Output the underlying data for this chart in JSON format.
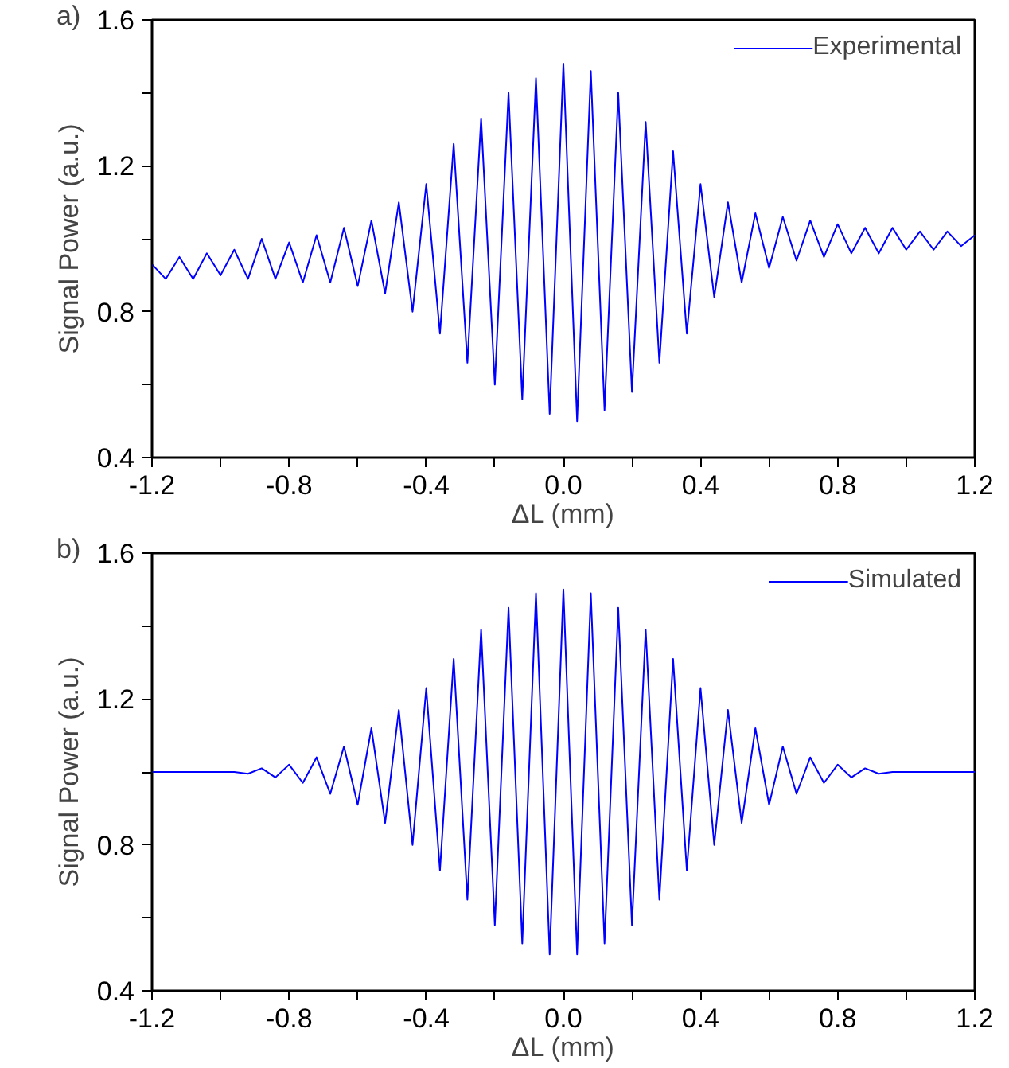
{
  "chart_data": [
    {
      "type": "line",
      "annotations": [
        "a)"
      ],
      "xlabel": "ΔL (mm)",
      "ylabel": "Signal Power (a.u.)",
      "x": [
        -1.2,
        -1.16,
        -1.12,
        -1.08,
        -1.04,
        -1.0,
        -0.96,
        -0.92,
        -0.88,
        -0.84,
        -0.8,
        -0.76,
        -0.72,
        -0.68,
        -0.64,
        -0.6,
        -0.56,
        -0.52,
        -0.48,
        -0.44,
        -0.4,
        -0.36,
        -0.32,
        -0.28,
        -0.24,
        -0.2,
        -0.16,
        -0.12,
        -0.08,
        -0.04,
        0.0,
        0.04,
        0.08,
        0.12,
        0.16,
        0.2,
        0.24,
        0.28,
        0.32,
        0.36,
        0.4,
        0.44,
        0.48,
        0.52,
        0.56,
        0.6,
        0.64,
        0.68,
        0.72,
        0.76,
        0.8,
        0.84,
        0.88,
        0.92,
        0.96,
        1.0,
        1.04,
        1.08,
        1.12,
        1.16,
        1.2
      ],
      "series": [
        {
          "name": "Experimental",
          "color": "#0000ff",
          "values": [
            0.93,
            0.89,
            0.95,
            0.89,
            0.96,
            0.9,
            0.97,
            0.89,
            1.0,
            0.89,
            0.99,
            0.88,
            1.01,
            0.88,
            1.03,
            0.87,
            1.05,
            0.85,
            1.1,
            0.8,
            1.15,
            0.74,
            1.26,
            0.66,
            1.33,
            0.6,
            1.4,
            0.56,
            1.44,
            0.52,
            1.48,
            0.5,
            1.46,
            0.53,
            1.4,
            0.58,
            1.32,
            0.66,
            1.24,
            0.74,
            1.15,
            0.84,
            1.1,
            0.88,
            1.07,
            0.92,
            1.06,
            0.94,
            1.05,
            0.95,
            1.04,
            0.96,
            1.03,
            0.96,
            1.03,
            0.97,
            1.02,
            0.97,
            1.02,
            0.98,
            1.01
          ]
        }
      ],
      "xlim": [
        -1.2,
        1.2
      ],
      "ylim": [
        0.4,
        1.6
      ],
      "xticks": [
        -1.2,
        {
          "value": -1.0,
          "label": null
        },
        -0.8,
        {
          "value": -0.6,
          "label": null
        },
        -0.4,
        {
          "value": -0.2,
          "label": null
        },
        {
          "value": 0,
          "label": "0.0"
        },
        {
          "value": 0.2,
          "label": null
        },
        0.4,
        {
          "value": 0.6,
          "label": null
        },
        0.8,
        {
          "value": 1.0,
          "label": null
        },
        1.2
      ],
      "yticks": [
        0.4,
        {
          "value": 0.6,
          "label": null
        },
        0.8,
        {
          "value": 1.0,
          "label": null
        },
        1.2,
        {
          "value": 1.4,
          "label": null
        },
        1.6
      ],
      "legend": "top right",
      "grid": false,
      "line_style": "solid",
      "marker": "none"
    },
    {
      "type": "line",
      "annotations": [
        "b)"
      ],
      "xlabel": "ΔL (mm)",
      "ylabel": "Signal Power (a.u.)",
      "x": [
        -1.2,
        -1.16,
        -1.12,
        -1.08,
        -1.04,
        -1.0,
        -0.96,
        -0.92,
        -0.88,
        -0.84,
        -0.8,
        -0.76,
        -0.72,
        -0.68,
        -0.64,
        -0.6,
        -0.56,
        -0.52,
        -0.48,
        -0.44,
        -0.4,
        -0.36,
        -0.32,
        -0.28,
        -0.24,
        -0.2,
        -0.16,
        -0.12,
        -0.08,
        -0.04,
        0.0,
        0.04,
        0.08,
        0.12,
        0.16,
        0.2,
        0.24,
        0.28,
        0.32,
        0.36,
        0.4,
        0.44,
        0.48,
        0.52,
        0.56,
        0.6,
        0.64,
        0.68,
        0.72,
        0.76,
        0.8,
        0.84,
        0.88,
        0.92,
        0.96,
        1.0,
        1.04,
        1.08,
        1.12,
        1.16,
        1.2
      ],
      "series": [
        {
          "name": "Simulated",
          "color": "#0000ff",
          "values": [
            1.0,
            1.0,
            1.0,
            1.0,
            1.0,
            1.0,
            1.0,
            0.995,
            1.01,
            0.985,
            1.02,
            0.97,
            1.04,
            0.94,
            1.07,
            0.91,
            1.12,
            0.86,
            1.17,
            0.8,
            1.23,
            0.73,
            1.31,
            0.65,
            1.39,
            0.58,
            1.45,
            0.53,
            1.49,
            0.5,
            1.5,
            0.5,
            1.49,
            0.53,
            1.45,
            0.58,
            1.39,
            0.65,
            1.31,
            0.73,
            1.23,
            0.8,
            1.17,
            0.86,
            1.12,
            0.91,
            1.07,
            0.94,
            1.04,
            0.97,
            1.02,
            0.985,
            1.01,
            0.995,
            1.0,
            1.0,
            1.0,
            1.0,
            1.0,
            1.0,
            1.0
          ]
        }
      ],
      "xlim": [
        -1.2,
        1.2
      ],
      "ylim": [
        0.4,
        1.6
      ],
      "xticks": [
        -1.2,
        {
          "value": -1.0,
          "label": null
        },
        -0.8,
        {
          "value": -0.6,
          "label": null
        },
        -0.4,
        {
          "value": -0.2,
          "label": null
        },
        {
          "value": 0,
          "label": "0.0"
        },
        {
          "value": 0.2,
          "label": null
        },
        0.4,
        {
          "value": 0.6,
          "label": null
        },
        0.8,
        {
          "value": 1.0,
          "label": null
        },
        1.2
      ],
      "yticks": [
        0.4,
        {
          "value": 0.6,
          "label": null
        },
        0.8,
        {
          "value": 1.0,
          "label": null
        },
        1.2,
        {
          "value": 1.4,
          "label": null
        },
        1.6
      ],
      "legend": "top right",
      "grid": false,
      "line_style": "solid",
      "marker": "none"
    }
  ]
}
